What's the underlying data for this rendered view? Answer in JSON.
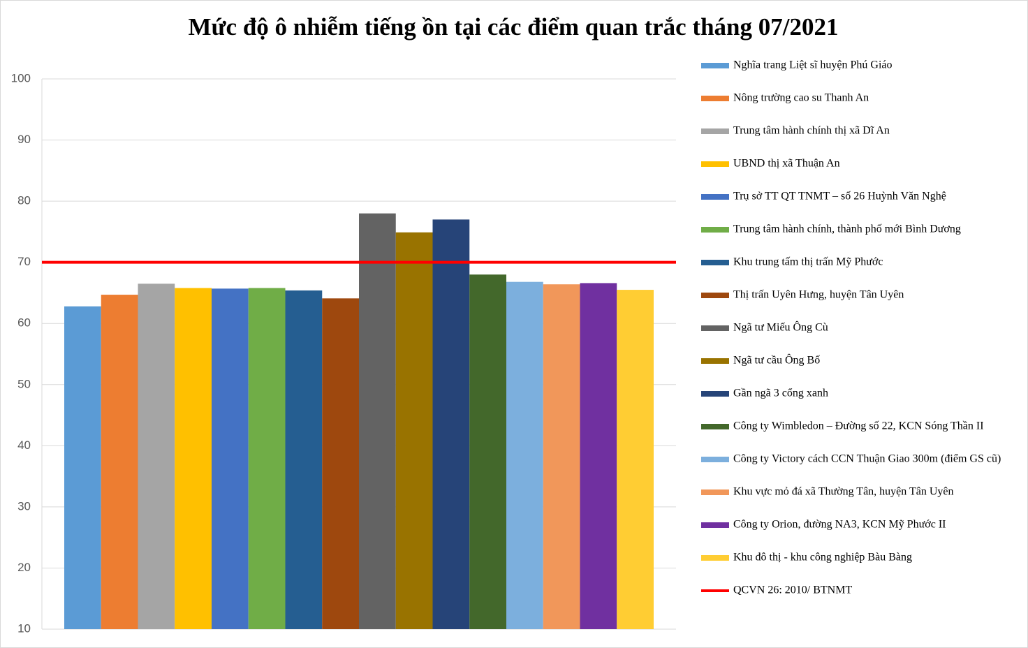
{
  "chart_data": {
    "type": "bar",
    "title": "Mức độ ô nhiễm tiếng ồn tại các điểm quan trắc tháng 07/2021",
    "categories": [
      null
    ],
    "series": [
      {
        "name": "Nghĩa trang Liệt sĩ huyện Phú Giáo",
        "color": "#5B9BD5",
        "values": [
          62.8
        ]
      },
      {
        "name": "Nông trường cao su Thanh  An",
        "color": "#ED7D31",
        "values": [
          64.7
        ]
      },
      {
        "name": "Trung  tâm hành  chính thị xã Dĩ An",
        "color": "#A5A5A5",
        "values": [
          66.5
        ]
      },
      {
        "name": "UBND thị xã Thuận  An",
        "color": "#FFC000",
        "values": [
          65.8
        ]
      },
      {
        "name": "Trụ sở TT  QT  TNMT  – số 26 Huỳnh  Văn Nghệ",
        "color": "#4472C4",
        "values": [
          65.7
        ]
      },
      {
        "name": "Trung  tâm hành  chính,  thành phố mới Bình Dương",
        "color": "#70AD47",
        "values": [
          65.8
        ]
      },
      {
        "name": "Khu trung tấm thị trấn Mỹ Phước",
        "color": "#255E91",
        "values": [
          65.4
        ]
      },
      {
        "name": "Thị trấn Uyên Hưng, huyện Tân Uyên",
        "color": "#9E480E",
        "values": [
          64.1
        ]
      },
      {
        "name": "Ngã tư Miếu Ông Cù",
        "color": "#636363",
        "values": [
          78
        ]
      },
      {
        "name": "Ngã tư cầu Ông Bố",
        "color": "#997300",
        "values": [
          74.9
        ]
      },
      {
        "name": "Gần ngã 3 cổng xanh",
        "color": "#264478",
        "values": [
          77
        ]
      },
      {
        "name": "Công ty Wimbledon – Đường số 22,  KCN Sóng Thần  II",
        "color": "#43682B",
        "values": [
          68
        ]
      },
      {
        "name": "Công ty Victory cách CCN Thuận  Giao 300m (điểm GS cũ)",
        "color": "#7CAFDD",
        "values": [
          66.8
        ]
      },
      {
        "name": "Khu vực mỏ đá xã Thường Tân,  huyện Tân Uyên",
        "color": "#F1975A",
        "values": [
          66.4
        ]
      },
      {
        "name": "Công ty Orion, đường NA3, KCN Mỹ Phước II",
        "color": "#7030A0",
        "values": [
          66.6
        ]
      },
      {
        "name": "Khu đô thị - khu công nghiệp Bàu Bàng",
        "color": "#FFCD33",
        "values": [
          65.5
        ]
      }
    ],
    "reference_line": {
      "name": "QCVN 26: 2010/ BTNMT",
      "color": "#FF0000",
      "value": 70
    },
    "ylim": [
      10,
      100
    ],
    "yticks": [
      10,
      20,
      30,
      40,
      50,
      60,
      70,
      80,
      90,
      100
    ],
    "grid": true,
    "legend": "right"
  }
}
